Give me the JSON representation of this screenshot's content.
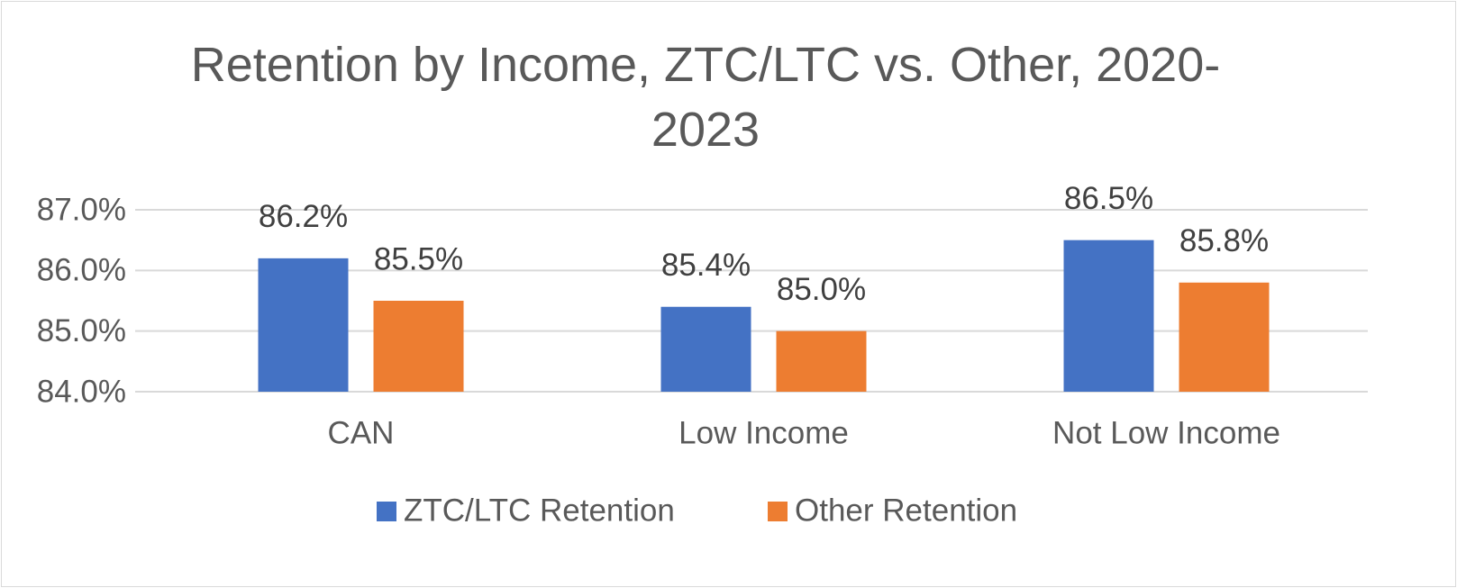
{
  "chart_data": {
    "type": "bar",
    "title": "Retention by Income, ZTC/LTC vs. Other, 2020-2023",
    "categories": [
      "CAN",
      "Low Income",
      "Not Low Income"
    ],
    "series": [
      {
        "name": "ZTC/LTC Retention",
        "color": "#4472c4",
        "values": [
          86.2,
          85.4,
          86.5
        ],
        "value_labels": [
          "86.2%",
          "85.4%",
          "86.5%"
        ]
      },
      {
        "name": "Other Retention",
        "color": "#ed7d31",
        "values": [
          85.5,
          85.0,
          85.8
        ],
        "value_labels": [
          "85.5%",
          "85.0%",
          "85.8%"
        ]
      }
    ],
    "ylim": [
      84,
      87
    ],
    "yticks": [
      {
        "value": 84,
        "label": "84.0%"
      },
      {
        "value": 85,
        "label": "85.0%"
      },
      {
        "value": 86,
        "label": "86.0%"
      },
      {
        "value": 87,
        "label": "87.0%"
      }
    ],
    "grid": true,
    "legend": "bottom"
  }
}
